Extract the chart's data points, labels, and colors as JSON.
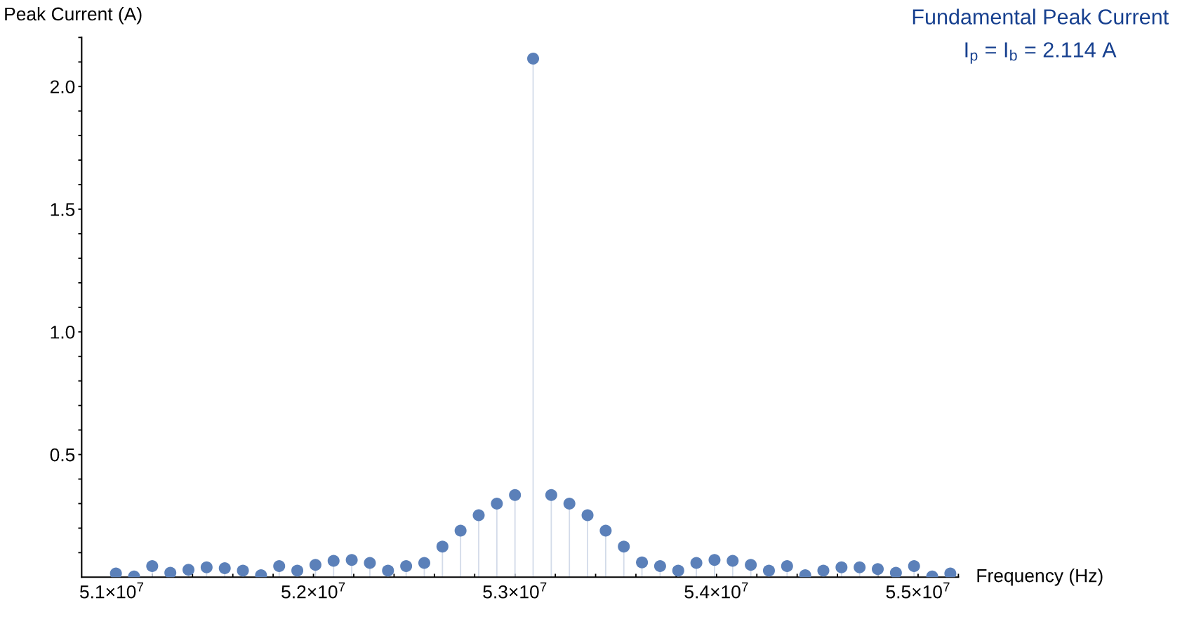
{
  "chart_data": {
    "type": "lollipop",
    "xlabel": "Frequency (Hz)",
    "ylabel": "Peak Current (A)",
    "annotations": [
      "Fundamental Peak Current",
      "I$_{p}$ = I$_{b}$ = 2.114 A"
    ],
    "x": [
      51020000,
      51110000,
      51200000,
      51290000,
      51380000,
      51470000,
      51560000,
      51650000,
      51740000,
      51830000,
      51920000,
      52010000,
      52100000,
      52190000,
      52280000,
      52370000,
      52460000,
      52550000,
      52640000,
      52730000,
      52820000,
      52910000,
      53000000,
      53090000,
      53180000,
      53270000,
      53360000,
      53450000,
      53540000,
      53630000,
      53720000,
      53810000,
      53900000,
      53990000,
      54080000,
      54170000,
      54260000,
      54350000,
      54440000,
      54530000,
      54620000,
      54710000,
      54800000,
      54890000,
      54980000,
      55070000,
      55160000
    ],
    "series": [
      {
        "color": "#5b80b9",
        "values": [
          0.015,
          0.003,
          0.045,
          0.018,
          0.03,
          0.04,
          0.037,
          0.027,
          0.008,
          0.045,
          0.027,
          0.05,
          0.067,
          0.07,
          0.058,
          0.027,
          0.045,
          0.058,
          0.125,
          0.19,
          0.253,
          0.3,
          0.335,
          2.114,
          0.335,
          0.3,
          0.253,
          0.19,
          0.125,
          0.06,
          0.045,
          0.027,
          0.058,
          0.07,
          0.067,
          0.05,
          0.027,
          0.045,
          0.008,
          0.027,
          0.04,
          0.04,
          0.033,
          0.018,
          0.045,
          0.003,
          0.015
        ]
      }
    ],
    "marker": "circle",
    "xlim": [
      50850000,
      55200000
    ],
    "ylim": [
      0,
      2.2
    ],
    "xticks": [
      {
        "value": 51000000,
        "label": "5.1×10$^{7}$"
      },
      {
        "value": 51200000,
        "label": null
      },
      {
        "value": 51400000,
        "label": null
      },
      {
        "value": 51600000,
        "label": null
      },
      {
        "value": 51800000,
        "label": null
      },
      {
        "value": 52000000,
        "label": "5.2×10$^{7}$"
      },
      {
        "value": 52200000,
        "label": null
      },
      {
        "value": 52400000,
        "label": null
      },
      {
        "value": 52600000,
        "label": null
      },
      {
        "value": 52800000,
        "label": null
      },
      {
        "value": 53000000,
        "label": "5.3×10$^{7}$"
      },
      {
        "value": 53200000,
        "label": null
      },
      {
        "value": 53400000,
        "label": null
      },
      {
        "value": 53600000,
        "label": null
      },
      {
        "value": 53800000,
        "label": null
      },
      {
        "value": 54000000,
        "label": "5.4×10$^{7}$"
      },
      {
        "value": 54200000,
        "label": null
      },
      {
        "value": 54400000,
        "label": null
      },
      {
        "value": 54600000,
        "label": null
      },
      {
        "value": 54800000,
        "label": null
      },
      {
        "value": 55000000,
        "label": "5.5×10$^{7}$"
      },
      {
        "value": 55200000,
        "label": null
      }
    ],
    "yticks": [
      {
        "value": 0.1,
        "label": null
      },
      {
        "value": 0.2,
        "label": null
      },
      {
        "value": 0.3,
        "label": null
      },
      {
        "value": 0.4,
        "label": null
      },
      0.5,
      {
        "value": 0.6,
        "label": null
      },
      {
        "value": 0.7,
        "label": null
      },
      {
        "value": 0.8,
        "label": null
      },
      {
        "value": 0.9,
        "label": null
      },
      {
        "value": 1.0,
        "label": "1.0"
      },
      {
        "value": 1.1,
        "label": null
      },
      {
        "value": 1.2,
        "label": null
      },
      {
        "value": 1.3,
        "label": null
      },
      {
        "value": 1.4,
        "label": null
      },
      1.5,
      {
        "value": 1.6,
        "label": null
      },
      {
        "value": 1.7,
        "label": null
      },
      {
        "value": 1.8,
        "label": null
      },
      {
        "value": 1.9,
        "label": null
      },
      {
        "value": 2.0,
        "label": "2.0"
      },
      {
        "value": 2.1,
        "label": null
      },
      {
        "value": 2.2,
        "label": null
      }
    ]
  }
}
